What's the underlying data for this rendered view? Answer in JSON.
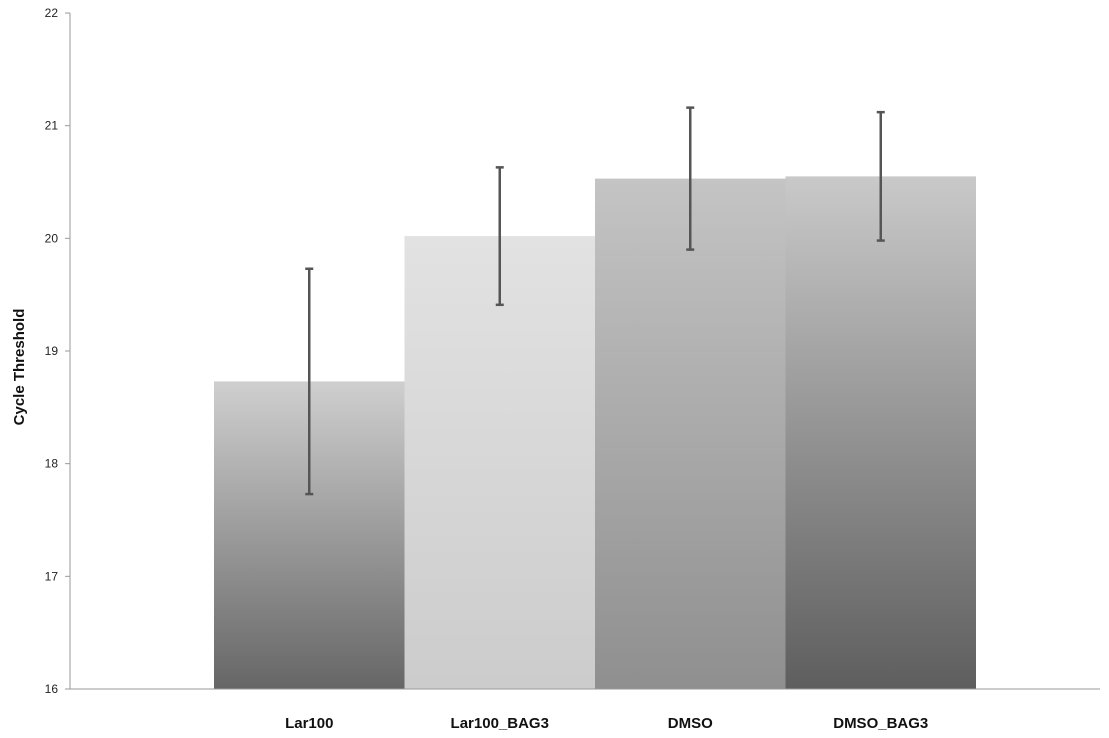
{
  "chart_data": {
    "type": "bar",
    "title": "",
    "xlabel": "",
    "ylabel": "Cycle Threshold",
    "categories": [
      "Lar100",
      "Lar100_BAG3",
      "DMSO",
      "DMSO_BAG3"
    ],
    "values": [
      18.73,
      20.02,
      20.53,
      20.55
    ],
    "error": [
      1.0,
      0.61,
      0.63,
      0.57
    ],
    "ylim": [
      16,
      22
    ],
    "yticks": [
      "16",
      "17",
      "18",
      "19",
      "20",
      "21",
      "22"
    ],
    "grid": false,
    "legend": "none",
    "bar_gradients": [
      {
        "top": "#cfcfcf",
        "bottom": "#666666"
      },
      {
        "top": "#e2e2e2",
        "bottom": "#cccccc"
      },
      {
        "top": "#c4c4c4",
        "bottom": "#8f8f8f"
      },
      {
        "top": "#c9c9c9",
        "bottom": "#5e5e5e"
      }
    ],
    "error_bar_color": "#555555",
    "axis_color": "#9a9a9a"
  }
}
